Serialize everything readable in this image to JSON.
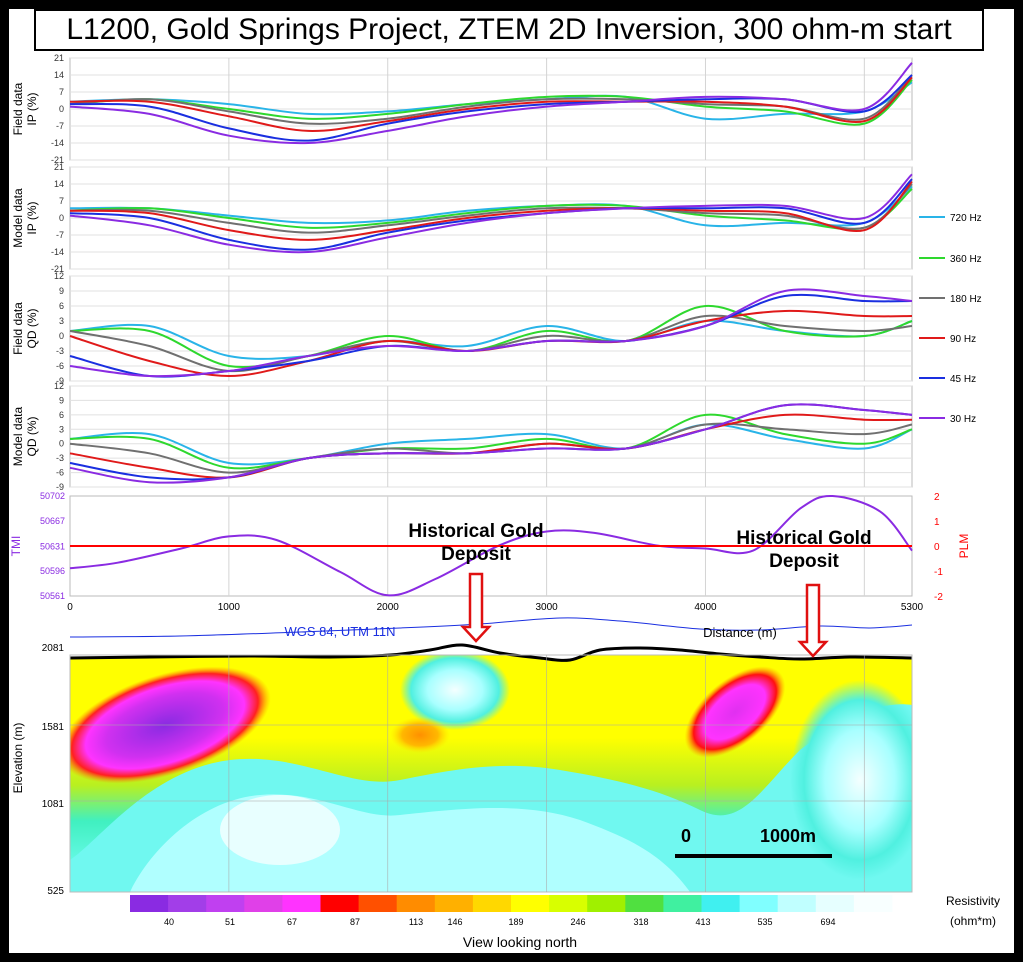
{
  "title": "L1200, Gold Springs Project, ZTEM 2D Inversion, 300 ohm-m start",
  "colors": {
    "720 Hz": "#29b4e8",
    "360 Hz": "#2ed82e",
    "180 Hz": "#707070",
    "90 Hz": "#e01a1a",
    "45 Hz": "#1a2fe0",
    "30 Hz": "#8a2be2",
    "tmi": "#8a2be2",
    "plm": "#ff0000",
    "topo": "#000000",
    "arrow": "#e01010"
  },
  "legend": [
    "720 Hz",
    "360 Hz",
    "180 Hz",
    "90 Hz",
    "45 Hz",
    "30 Hz"
  ],
  "chart_data": [
    {
      "type": "line",
      "panel": "Field data IP",
      "ylabel": "Field data\nIP (%)",
      "ylim": [
        -21,
        21
      ],
      "yticks": [
        "21",
        "14",
        "7",
        "0",
        "-7",
        "-14",
        "-21"
      ],
      "x": [
        0,
        500,
        1000,
        1500,
        2000,
        2500,
        3000,
        3500,
        4000,
        4500,
        5000,
        5300
      ],
      "series": [
        {
          "name": "720 Hz",
          "values": [
            3,
            4,
            2,
            -2,
            -1,
            2,
            4,
            5,
            -4,
            -2,
            -1,
            11
          ]
        },
        {
          "name": "360 Hz",
          "values": [
            2,
            4,
            0,
            -4,
            -2,
            2,
            5,
            5,
            1,
            -1,
            -6,
            12
          ]
        },
        {
          "name": "180 Hz",
          "values": [
            2,
            4,
            -1,
            -6,
            -4,
            1,
            4,
            4,
            2,
            1,
            -4,
            14
          ]
        },
        {
          "name": "90 Hz",
          "values": [
            3,
            3,
            -3,
            -9,
            -5,
            0,
            3,
            3,
            3,
            1,
            -5,
            13
          ]
        },
        {
          "name": "45 Hz",
          "values": [
            2,
            1,
            -8,
            -13,
            -6,
            -1,
            2,
            3,
            4,
            4,
            -1,
            14
          ]
        },
        {
          "name": "30 Hz",
          "values": [
            1,
            -2,
            -11,
            -14,
            -9,
            -3,
            1,
            3,
            5,
            4,
            0,
            19
          ]
        }
      ]
    },
    {
      "type": "line",
      "panel": "Model data IP",
      "ylabel": "Model data\nIP (%)",
      "ylim": [
        -21,
        21
      ],
      "yticks": [
        "21",
        "14",
        "7",
        "0",
        "-7",
        "-14",
        "-21"
      ],
      "x": [
        0,
        500,
        1000,
        1500,
        2000,
        2500,
        3000,
        3500,
        4000,
        4500,
        5000,
        5300
      ],
      "series": [
        {
          "name": "720 Hz",
          "values": [
            4,
            4,
            1,
            -2,
            -1,
            3,
            5,
            5,
            -3,
            -2,
            -2,
            13
          ]
        },
        {
          "name": "360 Hz",
          "values": [
            3,
            4,
            0,
            -4,
            -2,
            2,
            5,
            5,
            1,
            -1,
            -4,
            12
          ]
        },
        {
          "name": "180 Hz",
          "values": [
            3,
            3,
            -2,
            -6,
            -3,
            1,
            4,
            4,
            2,
            1,
            -4,
            14
          ]
        },
        {
          "name": "90 Hz",
          "values": [
            3,
            2,
            -5,
            -9,
            -5,
            0,
            3,
            4,
            3,
            2,
            -5,
            15
          ]
        },
        {
          "name": "45 Hz",
          "values": [
            2,
            0,
            -9,
            -13,
            -6,
            -1,
            2,
            4,
            4,
            4,
            -2,
            16
          ]
        },
        {
          "name": "30 Hz",
          "values": [
            1,
            -3,
            -11,
            -14,
            -8,
            -2,
            2,
            4,
            5,
            5,
            0,
            18
          ]
        }
      ]
    },
    {
      "type": "line",
      "panel": "Field data QD",
      "ylabel": "Field data\nQD (%)",
      "ylim": [
        -9,
        12
      ],
      "yticks": [
        "12",
        "9",
        "6",
        "3",
        "0",
        "-3",
        "-6",
        "-9"
      ],
      "x": [
        0,
        500,
        1000,
        1500,
        2000,
        2500,
        3000,
        3500,
        4000,
        4500,
        5000,
        5300
      ],
      "series": [
        {
          "name": "720 Hz",
          "values": [
            1,
            2,
            -4,
            -4,
            -1,
            -2,
            2,
            -1,
            3,
            1,
            0,
            3
          ]
        },
        {
          "name": "360 Hz",
          "values": [
            1,
            1,
            -6,
            -4,
            0,
            -3,
            1,
            -1,
            6,
            1,
            0,
            3
          ]
        },
        {
          "name": "180 Hz",
          "values": [
            1,
            -2,
            -7,
            -4,
            -1,
            -3,
            0,
            -1,
            4,
            2,
            1,
            2
          ]
        },
        {
          "name": "90 Hz",
          "values": [
            0,
            -5,
            -8,
            -5,
            -1,
            -3,
            -1,
            -1,
            3,
            5,
            4,
            4
          ]
        },
        {
          "name": "45 Hz",
          "values": [
            -4,
            -8,
            -7,
            -5,
            -2,
            -3,
            -1,
            -1,
            2,
            8,
            7,
            7
          ]
        },
        {
          "name": "30 Hz",
          "values": [
            -6,
            -8,
            -7,
            -4,
            -2,
            -3,
            -1,
            -1,
            2,
            9,
            8,
            7
          ]
        }
      ]
    },
    {
      "type": "line",
      "panel": "Model data QD",
      "ylabel": "Model data\nQD (%)",
      "ylim": [
        -9,
        12
      ],
      "yticks": [
        "12",
        "9",
        "6",
        "3",
        "0",
        "-3",
        "-6",
        "-9"
      ],
      "x": [
        0,
        500,
        1000,
        1500,
        2000,
        2500,
        3000,
        3500,
        4000,
        4500,
        5000,
        5300
      ],
      "series": [
        {
          "name": "720 Hz",
          "values": [
            1,
            2,
            -4,
            -3,
            0,
            1,
            2,
            -1,
            4,
            1,
            -1,
            3
          ]
        },
        {
          "name": "360 Hz",
          "values": [
            1,
            1,
            -5,
            -3,
            -1,
            -1,
            1,
            -1,
            6,
            2,
            0,
            3
          ]
        },
        {
          "name": "180 Hz",
          "values": [
            0,
            -2,
            -6,
            -3,
            -1,
            -2,
            0,
            -1,
            4,
            3,
            2,
            4
          ]
        },
        {
          "name": "90 Hz",
          "values": [
            -2,
            -5,
            -7,
            -3,
            -2,
            -2,
            0,
            -1,
            3,
            6,
            5,
            5
          ]
        },
        {
          "name": "45 Hz",
          "values": [
            -4,
            -7,
            -7,
            -3,
            -2,
            -2,
            -1,
            -1,
            3,
            8,
            7,
            6
          ]
        },
        {
          "name": "30 Hz",
          "values": [
            -5,
            -8,
            -7,
            -3,
            -2,
            -2,
            -1,
            -1,
            3,
            8,
            7,
            6
          ]
        }
      ]
    },
    {
      "type": "line",
      "panel": "TMI / PLM",
      "ylabel": "TMI",
      "y2label": "PLM",
      "ylim": [
        50561,
        50702
      ],
      "yticks": [
        "50702",
        "50667",
        "50631",
        "50596",
        "50561"
      ],
      "y2lim": [
        -2,
        2
      ],
      "y2ticks": [
        "2",
        "1",
        "0",
        "-1",
        "-2"
      ],
      "xlim": [
        0,
        5300
      ],
      "xticks": [
        "0",
        "1000",
        "2000",
        "3000",
        "4000",
        "5300"
      ],
      "series": [
        {
          "name": "TMI",
          "x": [
            0,
            300,
            700,
            1000,
            1300,
            1700,
            2000,
            2300,
            2700,
            3000,
            3300,
            3700,
            4000,
            4300,
            4600,
            4800,
            5100,
            5300
          ],
          "values": [
            50600,
            50608,
            50628,
            50645,
            50640,
            50595,
            50562,
            50585,
            50632,
            50652,
            50650,
            50632,
            50628,
            50625,
            50685,
            50702,
            50680,
            50625
          ]
        },
        {
          "name": "PLM",
          "x": [
            0,
            5300
          ],
          "values": [
            0,
            0
          ]
        }
      ],
      "annotations": [
        "Historical Gold\nDeposit",
        "Historical Gold\nDeposit"
      ]
    },
    {
      "type": "heatmap",
      "panel": "Resistivity section",
      "ylabel": "Elevation (m)",
      "yticks": [
        "2081",
        "1581",
        "1081",
        "525"
      ],
      "xlabel": "View looking north",
      "crs_label": "WGS 84, UTM 11N",
      "distance_label": "Distance (m)",
      "colorbar": {
        "title": "Resistivity\n(ohm*m)",
        "labels": [
          "40",
          "51",
          "67",
          "87",
          "113",
          "146",
          "189",
          "246",
          "318",
          "413",
          "535",
          "694"
        ],
        "colors": [
          "#8a2be2",
          "#a23ee8",
          "#c040f0",
          "#e040e8",
          "#ff33ff",
          "#ff0000",
          "#ff5000",
          "#ff8c00",
          "#ffb000",
          "#ffd800",
          "#ffff00",
          "#d8ff00",
          "#a0f000",
          "#50e040",
          "#40f0a0",
          "#40f0f0",
          "#80ffff",
          "#c0ffff",
          "#e6ffff",
          "#f8ffff"
        ]
      },
      "scale_bar": {
        "start": "0",
        "end": "1000m"
      }
    }
  ]
}
